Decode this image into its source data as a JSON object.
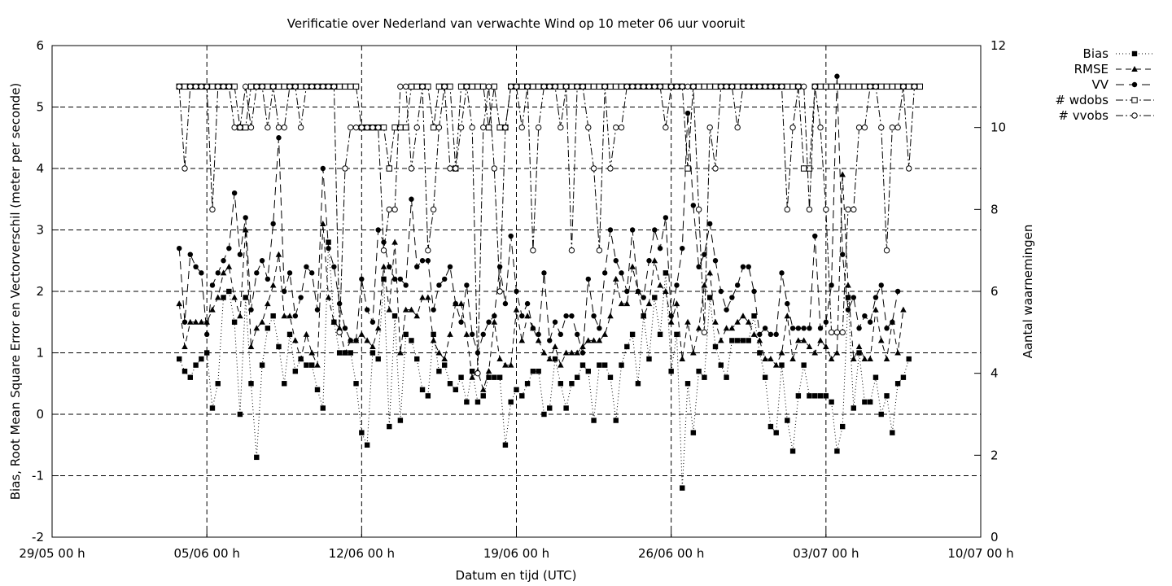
{
  "chart_data": {
    "type": "line",
    "title": "Verificatie over Nederland van verwachte Wind op 10 meter 06 uur vooruit",
    "xlabel": "Datum en tijd (UTC)",
    "ylabel": "Bias, Root Mean Square Error en Vectorverschil (meter per seconde)",
    "y2label": "Aantal waarnemingen",
    "xlim": [
      0,
      41
    ],
    "ylim": [
      -2,
      6
    ],
    "y2lim": [
      0,
      12
    ],
    "x_unit": "days after 29/05 00 h",
    "x_ticks": [
      {
        "x": 0,
        "label": "29/05 00 h"
      },
      {
        "x": 7,
        "label": "05/06 00 h"
      },
      {
        "x": 14,
        "label": "12/06 00 h"
      },
      {
        "x": 21,
        "label": "19/06 00 h"
      },
      {
        "x": 28,
        "label": "26/06 00 h"
      },
      {
        "x": 35,
        "label": "03/07 00 h"
      },
      {
        "x": 42,
        "label": "10/07 00 h"
      }
    ],
    "y_ticks": [
      "-2",
      "-1",
      "0",
      "1",
      "2",
      "3",
      "4",
      "5",
      "6"
    ],
    "y2_ticks": [
      "0",
      "2",
      "4",
      "6",
      "8",
      "10",
      "12"
    ],
    "grid": true,
    "legend_position": "outside top-right",
    "series": [
      {
        "name": "Bias",
        "marker": "filled-square",
        "dash": "dotted",
        "axis": "y",
        "x_start": 5.75,
        "x_step": 0.25,
        "values": [
          0.9,
          0.7,
          0.6,
          0.8,
          0.9,
          1.0,
          0.1,
          0.5,
          1.9,
          2.0,
          1.5,
          0.0,
          1.9,
          0.5,
          -0.7,
          0.8,
          1.4,
          1.6,
          1.1,
          0.5,
          1.3,
          0.7,
          0.9,
          0.8,
          0.8,
          0.4,
          0.1,
          2.8,
          1.5,
          1.0,
          1.0,
          1.0,
          0.5,
          -0.3,
          -0.5,
          1.0,
          0.9,
          2.2,
          -0.2,
          1.6,
          -0.1,
          1.3,
          1.2,
          0.9,
          0.4,
          0.3,
          1.3,
          0.7,
          0.8,
          0.5,
          0.4,
          0.6,
          0.2,
          0.7,
          0.2,
          0.3,
          0.6,
          0.6,
          0.6,
          -0.5,
          0.2,
          0.4,
          0.3,
          0.5,
          0.7,
          0.7,
          0.0,
          0.1,
          0.9,
          0.5,
          0.1,
          0.5,
          0.6,
          0.8,
          0.7,
          -0.1,
          0.8,
          0.8,
          0.6,
          -0.1,
          0.8,
          1.1,
          1.3,
          0.5,
          1.6,
          0.9,
          1.9,
          1.3,
          2.3,
          0.7,
          1.3,
          -1.2,
          0.5,
          -0.3,
          0.7,
          0.6,
          1.9,
          1.1,
          0.8,
          0.6,
          1.2,
          1.2,
          1.2,
          1.2,
          1.6,
          1.0,
          0.6,
          -0.2,
          -0.3,
          0.8,
          -0.1,
          -0.6,
          0.3,
          0.8,
          0.3,
          0.3,
          0.3,
          0.3,
          0.2,
          -0.6,
          -0.2,
          1.9,
          0.1,
          1.0,
          0.2,
          0.2,
          0.6,
          0.0,
          0.3,
          -0.3,
          0.5,
          0.6,
          0.9
        ]
      },
      {
        "name": "RMSE",
        "marker": "filled-triangle",
        "dash": "dashed",
        "axis": "y",
        "x_start": 5.75,
        "x_step": 0.25,
        "values": [
          1.8,
          1.1,
          1.5,
          1.5,
          1.5,
          1.5,
          1.7,
          1.9,
          2.3,
          2.4,
          1.9,
          1.6,
          3.0,
          1.1,
          1.4,
          1.5,
          1.8,
          2.1,
          2.6,
          1.6,
          1.6,
          1.2,
          0.9,
          1.3,
          1.0,
          0.8,
          3.1,
          1.9,
          1.5,
          1.4,
          1.0,
          1.2,
          1.2,
          1.3,
          1.2,
          1.1,
          1.4,
          2.4,
          1.7,
          2.8,
          1.0,
          1.7,
          1.7,
          1.6,
          1.9,
          1.9,
          1.2,
          1.0,
          0.9,
          1.3,
          1.8,
          1.8,
          1.3,
          0.6,
          0.7,
          0.4,
          0.7,
          1.5,
          0.9,
          0.8,
          0.8,
          1.7,
          1.2,
          1.6,
          1.4,
          1.2,
          1.0,
          0.9,
          1.1,
          0.8,
          1.0,
          1.0,
          1.0,
          1.1,
          1.2,
          1.2,
          1.2,
          1.3,
          1.6,
          2.2,
          1.8,
          1.8,
          2.4,
          2.0,
          1.6,
          1.8,
          2.5,
          2.1,
          2.0,
          1.5,
          1.8,
          0.9,
          1.5,
          1.0,
          1.4,
          2.1,
          2.3,
          1.5,
          1.2,
          1.4,
          1.4,
          1.5,
          1.6,
          1.5,
          1.3,
          1.2,
          0.9,
          0.9,
          0.8,
          1.0,
          1.6,
          0.9,
          1.2,
          1.2,
          1.1,
          1.0,
          1.2,
          1.1,
          0.9,
          1.0,
          3.9,
          2.1,
          0.9,
          1.1,
          0.9,
          0.9,
          1.7,
          1.2,
          0.9,
          1.5,
          1.0,
          1.7
        ]
      },
      {
        "name": "VV",
        "marker": "filled-circle",
        "dash": "long-dashed",
        "axis": "y",
        "x_start": 5.75,
        "x_step": 0.25,
        "values": [
          2.7,
          1.5,
          2.6,
          2.4,
          2.3,
          1.3,
          2.1,
          2.3,
          2.5,
          2.7,
          3.6,
          2.6,
          3.2,
          1.7,
          2.3,
          2.5,
          2.2,
          3.1,
          4.5,
          2.0,
          2.3,
          1.6,
          1.9,
          2.4,
          2.3,
          1.7,
          4.0,
          2.7,
          2.4,
          1.8,
          1.4,
          1.2,
          1.2,
          2.2,
          1.7,
          1.5,
          3.0,
          2.8,
          2.4,
          2.2,
          2.2,
          2.1,
          3.5,
          2.4,
          2.5,
          2.5,
          1.7,
          2.1,
          2.2,
          2.4,
          1.8,
          1.5,
          2.1,
          1.3,
          1.0,
          1.3,
          1.5,
          1.6,
          2.4,
          1.8,
          2.9,
          2.0,
          1.6,
          1.8,
          1.4,
          1.3,
          2.3,
          1.2,
          1.5,
          1.3,
          1.6,
          1.6,
          1.3,
          1.0,
          2.2,
          1.6,
          1.4,
          2.3,
          3.0,
          2.5,
          2.3,
          2.0,
          3.0,
          2.0,
          1.9,
          2.5,
          3.0,
          2.7,
          3.2,
          1.6,
          2.1,
          2.7,
          4.9,
          3.4,
          2.4,
          2.6,
          3.1,
          2.5,
          2.0,
          1.7,
          1.9,
          2.1,
          2.4,
          2.4,
          2.0,
          1.3,
          1.4,
          1.3,
          1.3,
          2.3,
          1.8,
          1.4,
          1.4,
          1.4,
          1.4,
          2.9,
          1.4,
          1.5,
          2.1,
          5.5,
          2.6,
          1.7,
          1.9,
          1.4,
          1.6,
          1.5,
          1.9,
          2.1,
          1.4,
          1.5,
          2.0
        ]
      },
      {
        "name": "# wdobs",
        "marker": "open-square",
        "dash": "dash-dot",
        "axis": "y2",
        "x_start": 5.75,
        "x_step": 0.25,
        "values": [
          11,
          11,
          11,
          11,
          11,
          11,
          11,
          11,
          11,
          11,
          11,
          10,
          10,
          11,
          11,
          11,
          11,
          11,
          11,
          11,
          11,
          11,
          11,
          11,
          11,
          11,
          11,
          11,
          11,
          11,
          11,
          11,
          11,
          10,
          10,
          10,
          10,
          10,
          9,
          10,
          10,
          10,
          11,
          11,
          11,
          11,
          10,
          11,
          11,
          11,
          9,
          11,
          11,
          11,
          11,
          11,
          10,
          11,
          10,
          10,
          11,
          11,
          11,
          11,
          11,
          11,
          11,
          11,
          11,
          11,
          11,
          11,
          11,
          11,
          11,
          11,
          11,
          11,
          11,
          11,
          11,
          11,
          11,
          11,
          11,
          11,
          11,
          11,
          11,
          11,
          11,
          11,
          9,
          11,
          11,
          11,
          11,
          11,
          11,
          11,
          11,
          11,
          11,
          11,
          11,
          11,
          11,
          11,
          11,
          11,
          11,
          11,
          11,
          9,
          9,
          11,
          11,
          11,
          11,
          11,
          11,
          11,
          11,
          11,
          11,
          11,
          11,
          11,
          11,
          11,
          11,
          11,
          11,
          11,
          11
        ]
      },
      {
        "name": "# vvobs",
        "marker": "open-circle",
        "dash": "dash-dot",
        "axis": "y2",
        "x_start": 5.75,
        "x_step": 0.25,
        "values": [
          11,
          9,
          11,
          11,
          11,
          11,
          8,
          11,
          11,
          11,
          10,
          10,
          11,
          10,
          11,
          11,
          10,
          11,
          10,
          10,
          11,
          11,
          10,
          11,
          11,
          11,
          11,
          11,
          11,
          5,
          9,
          10,
          10,
          10,
          10,
          10,
          10,
          7,
          8,
          8,
          11,
          11,
          9,
          10,
          11,
          7,
          8,
          10,
          11,
          9,
          9,
          10,
          11,
          10,
          4,
          10,
          11,
          9,
          6,
          10,
          11,
          11,
          10,
          11,
          7,
          10,
          11,
          11,
          11,
          10,
          11,
          7,
          11,
          11,
          10,
          9,
          7,
          11,
          9,
          10,
          10,
          11,
          11,
          11,
          11,
          11,
          11,
          11,
          10,
          11,
          11,
          11,
          11,
          11,
          8,
          5,
          10,
          9,
          11,
          11,
          11,
          10,
          11,
          11,
          11,
          11,
          11,
          11,
          11,
          11,
          8,
          10,
          11,
          11,
          8,
          11,
          10,
          8,
          5,
          5,
          5,
          8,
          8,
          10,
          10,
          11,
          11,
          10,
          7,
          10,
          10,
          11,
          9,
          11
        ]
      }
    ]
  }
}
